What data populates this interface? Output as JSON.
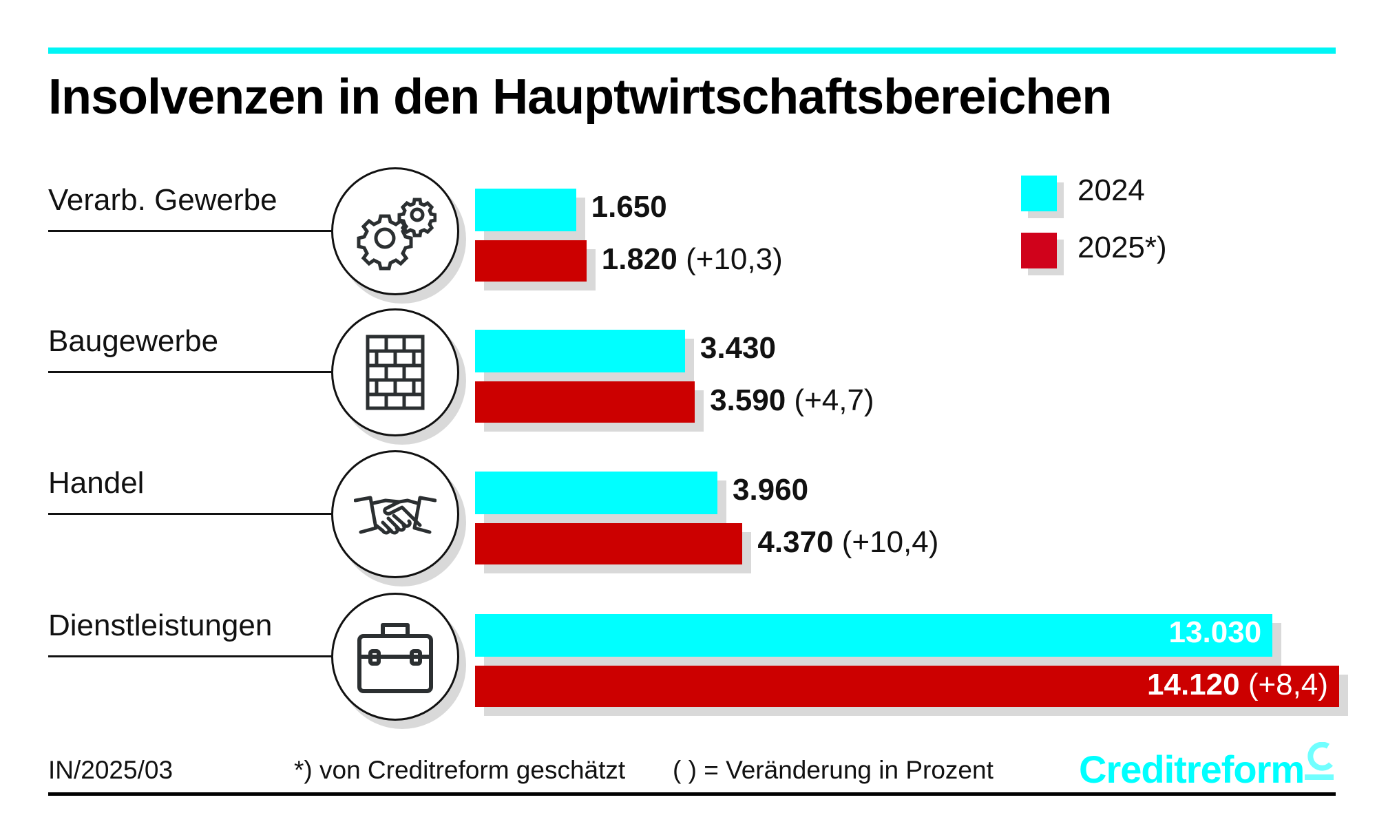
{
  "title": "Insolvenzen in den Hauptwirtschaftsbereichen",
  "colors": {
    "y2024": "#00ffff",
    "y2025": "#cc0000",
    "shadow": "#d9d9d9"
  },
  "legend": [
    {
      "label": "2024",
      "color": "#00ffff"
    },
    {
      "label": "2025*)",
      "color": "#cc0000"
    }
  ],
  "chart_data": {
    "type": "bar",
    "orientation": "horizontal",
    "title": "Insolvenzen in den Hauptwirtschaftsbereichen",
    "categories": [
      "Verarb. Gewerbe",
      "Baugewerbe",
      "Handel",
      "Dienstleistungen"
    ],
    "icons": [
      "gears-icon",
      "brick-wall-icon",
      "handshake-icon",
      "briefcase-icon"
    ],
    "series": [
      {
        "name": "2024",
        "values": [
          1650,
          3430,
          3960,
          13030
        ],
        "labels": [
          "1.650",
          "3.430",
          "3.960",
          "13.030"
        ]
      },
      {
        "name": "2025*)",
        "values": [
          1820,
          3590,
          4370,
          14120
        ],
        "labels": [
          "1.820",
          "3.590",
          "4.370",
          "14.120"
        ],
        "changes": [
          "(+10,3)",
          "(+4,7)",
          "(+10,4)",
          "(+8,4)"
        ]
      }
    ],
    "legend_position": "top-right",
    "xlim": [
      0,
      14120
    ]
  },
  "footer": {
    "code": "IN/2025/03",
    "note1": "*) von Creditreform geschätzt",
    "note2": "( ) = Veränderung in Prozent",
    "logo": "Creditreform"
  }
}
